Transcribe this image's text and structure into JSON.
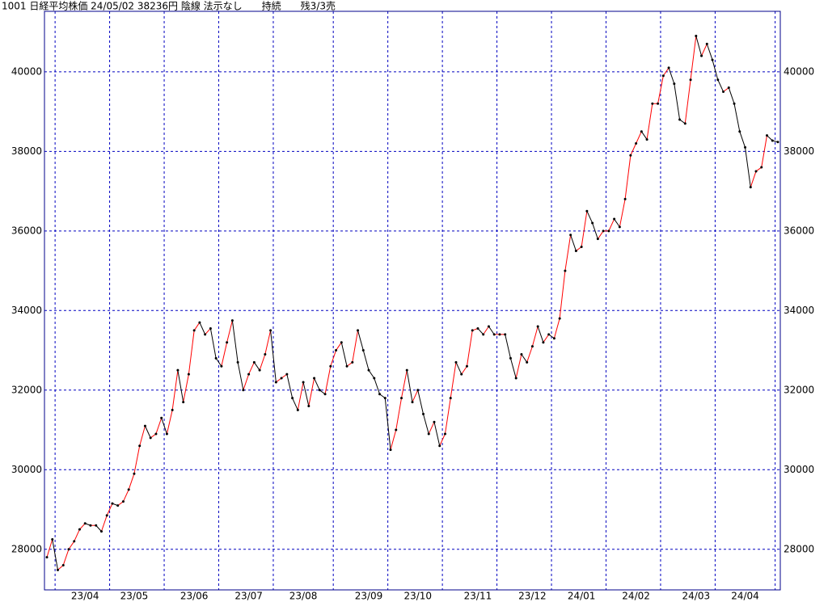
{
  "chart_data": {
    "type": "line",
    "title": "1001 日経平均株価 24/05/02 38236円 陰線 法示なし　　持続　　残3/3売",
    "categories": [
      null,
      null,
      null,
      null,
      null,
      null,
      null,
      "23/04",
      null,
      null,
      null,
      null,
      null,
      null,
      null,
      null,
      "23/05",
      null,
      null,
      null,
      null,
      null,
      null,
      null,
      null,
      null,
      null,
      "23/06",
      null,
      null,
      null,
      null,
      null,
      null,
      null,
      null,
      null,
      "23/07",
      null,
      null,
      null,
      null,
      null,
      null,
      null,
      null,
      null,
      "23/08",
      null,
      null,
      null,
      null,
      null,
      null,
      null,
      null,
      null,
      null,
      null,
      "23/09",
      null,
      null,
      null,
      null,
      null,
      null,
      null,
      null,
      "23/10",
      null,
      null,
      null,
      null,
      null,
      null,
      null,
      null,
      null,
      null,
      "23/11",
      null,
      null,
      null,
      null,
      null,
      null,
      null,
      null,
      null,
      "23/12",
      null,
      null,
      null,
      null,
      null,
      null,
      null,
      null,
      "24/01",
      null,
      null,
      null,
      null,
      null,
      null,
      null,
      null,
      null,
      "24/02",
      null,
      null,
      null,
      null,
      null,
      null,
      null,
      null,
      null,
      null,
      "24/03",
      null,
      null,
      null,
      null,
      null,
      null,
      null,
      null,
      "24/04",
      null,
      null,
      null,
      null,
      null,
      null
    ],
    "values": [
      27800,
      28250,
      27480,
      27600,
      28000,
      28200,
      28500,
      28650,
      28600,
      28600,
      28450,
      28850,
      29150,
      29100,
      29200,
      29500,
      29900,
      30600,
      31100,
      30800,
      30900,
      31300,
      30900,
      31500,
      32500,
      31700,
      32400,
      33500,
      33700,
      33400,
      33550,
      32800,
      32600,
      33200,
      33750,
      32700,
      32000,
      32400,
      32700,
      32500,
      32900,
      33500,
      32200,
      32300,
      32400,
      31800,
      31500,
      32200,
      31600,
      32300,
      32000,
      31900,
      32600,
      33000,
      33200,
      32600,
      32700,
      33500,
      33000,
      32500,
      32300,
      31900,
      31800,
      30500,
      31000,
      31800,
      32500,
      31700,
      32000,
      31400,
      30900,
      31200,
      30600,
      30900,
      31800,
      32700,
      32400,
      32600,
      33500,
      33550,
      33400,
      33600,
      33400,
      33400,
      33400,
      32800,
      32300,
      32900,
      32700,
      33100,
      33600,
      33200,
      33400,
      33300,
      33800,
      35000,
      35900,
      35500,
      35600,
      36500,
      36200,
      35800,
      36000,
      36000,
      36300,
      36100,
      36800,
      37900,
      38200,
      38500,
      38300,
      39200,
      39200,
      39900,
      40100,
      39700,
      38800,
      38700,
      39800,
      40900,
      40400,
      40700,
      40300,
      39800,
      39500,
      39600,
      39200,
      38500,
      38100,
      37100,
      37500,
      37600,
      38400,
      38270,
      38236
    ],
    "xgrid_indices": [
      2,
      12,
      22,
      32,
      42,
      53,
      63,
      73,
      83,
      93,
      103,
      113,
      123,
      134
    ],
    "up_color": "#ff0000",
    "down_color": "#000000",
    "frame_color": "#00008b",
    "ylim": [
      26980,
      41520
    ],
    "yticks": [
      28000,
      30000,
      32000,
      34000,
      36000,
      38000,
      40000
    ],
    "grid": true
  }
}
